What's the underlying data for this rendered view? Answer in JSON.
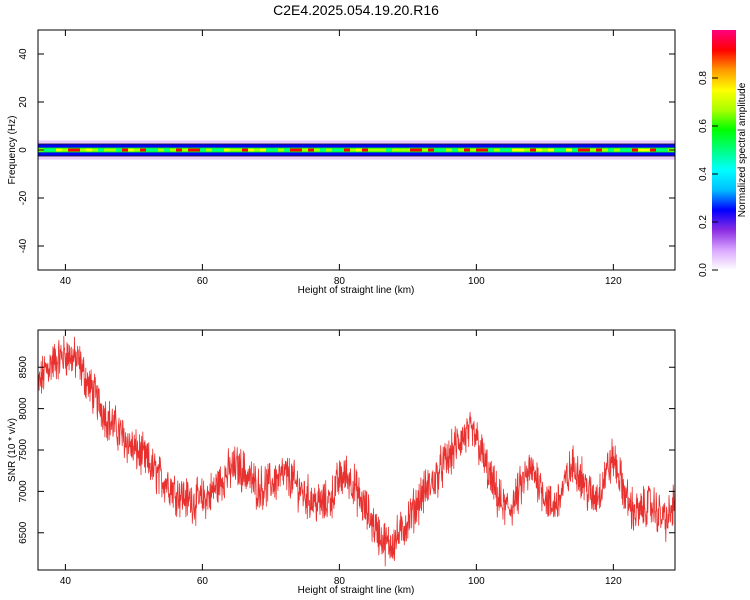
{
  "figure": {
    "title": "C2E4.2025.054.19.20.R16"
  },
  "chart_data": [
    {
      "type": "heatmap",
      "xlabel": "Height of straight line (km)",
      "ylabel": "Frequency (Hz)",
      "xlim": [
        36,
        129
      ],
      "ylim": [
        -50,
        50
      ],
      "xticks": [
        40,
        60,
        80,
        100,
        120
      ],
      "yticks": [
        -40,
        -20,
        0,
        20,
        40
      ],
      "grid": false,
      "band": {
        "center_hz": 0,
        "core_halfwidth_hz": 1,
        "outer_halfwidth_hz": 4
      },
      "colorbar": {
        "label": "Normalized spectral amplitude",
        "range": [
          0,
          1
        ],
        "ticks": [
          "0.0",
          "0.2",
          "0.4",
          "0.6",
          "0.8"
        ],
        "colors": [
          "#ffffff",
          "#d9a6ff",
          "#8a2be2",
          "#0000ff",
          "#00bfff",
          "#00ffff",
          "#00ff7f",
          "#00ff00",
          "#aaff00",
          "#ffff00",
          "#ff9900",
          "#ff0000",
          "#ff0080"
        ]
      }
    },
    {
      "type": "line",
      "xlabel": "Height of straight line (km)",
      "ylabel": "SNR (10 * v/v)",
      "xlim": [
        36,
        129
      ],
      "ylim": [
        6050,
        8950
      ],
      "xticks": [
        40,
        60,
        80,
        100,
        120
      ],
      "yticks": [
        6500,
        7000,
        7500,
        8000,
        8500
      ],
      "grid": false,
      "color": "#e8302e",
      "series": [
        {
          "x": [
            36,
            37,
            38,
            39,
            40,
            41,
            42,
            43,
            44,
            45,
            46,
            47,
            48,
            49,
            50,
            51,
            52,
            53,
            54,
            55,
            56,
            57,
            58,
            59,
            60,
            61,
            62,
            63,
            64,
            65,
            66,
            67,
            68,
            69,
            70,
            71,
            72,
            73,
            74,
            75,
            76,
            77,
            78,
            79,
            80,
            81,
            82,
            83,
            84,
            85,
            86,
            87,
            88,
            89,
            90,
            91,
            92,
            93,
            94,
            95,
            96,
            97,
            98,
            99,
            100,
            101,
            102,
            103,
            104,
            105,
            106,
            107,
            108,
            109,
            110,
            111,
            112,
            113,
            114,
            115,
            116,
            117,
            118,
            119,
            120,
            121,
            122,
            123,
            124,
            125,
            126,
            127,
            128,
            129
          ],
          "y": [
            8250,
            8450,
            8550,
            8600,
            8650,
            8620,
            8550,
            8350,
            8200,
            8050,
            7900,
            7800,
            7700,
            7600,
            7500,
            7450,
            7350,
            7250,
            7150,
            7100,
            7000,
            6950,
            6900,
            6880,
            6900,
            6950,
            7050,
            7150,
            7250,
            7300,
            7250,
            7150,
            7050,
            7050,
            7100,
            7150,
            7200,
            7150,
            7050,
            6950,
            6900,
            6850,
            6850,
            6950,
            7150,
            7200,
            7100,
            6900,
            6750,
            6600,
            6450,
            6350,
            6400,
            6500,
            6650,
            6800,
            6950,
            7050,
            7150,
            7300,
            7400,
            7550,
            7650,
            7700,
            7650,
            7400,
            7150,
            6950,
            6800,
            6800,
            6950,
            7150,
            7250,
            7150,
            6950,
            6800,
            6900,
            7100,
            7300,
            7250,
            7050,
            6900,
            7000,
            7250,
            7400,
            7150,
            6900,
            6750,
            6750,
            6850,
            6800,
            6700,
            6650,
            6900
          ]
        }
      ]
    }
  ]
}
